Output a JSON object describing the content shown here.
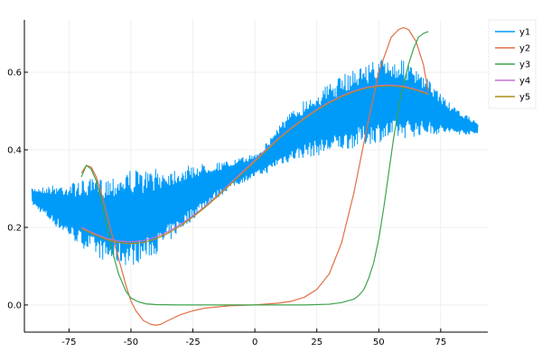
{
  "chart_data": {
    "type": "line",
    "title": "",
    "xlabel": "",
    "ylabel": "",
    "xlim": [
      -93,
      94
    ],
    "ylim": [
      -0.07,
      0.735
    ],
    "xticks": [
      -75,
      -50,
      -25,
      0,
      25,
      50,
      75
    ],
    "xtick_labels": [
      "-75",
      "-50",
      "-25",
      "0",
      "25",
      "50",
      "75"
    ],
    "yticks": [
      0.0,
      0.2,
      0.4,
      0.6
    ],
    "ytick_labels": [
      "0.0",
      "0.2",
      "0.4",
      "0.6"
    ],
    "grid": true,
    "legend_position": "top-right",
    "series": [
      {
        "name": "y1",
        "color": "#009af9",
        "style": "noisy-band",
        "x": [
          -90,
          -80,
          -70,
          -60,
          -50,
          -45,
          -40,
          -30,
          -20,
          -10,
          0,
          5,
          10,
          20,
          30,
          40,
          50,
          60,
          70,
          80,
          90
        ],
        "y_low": [
          0.26,
          0.2,
          0.15,
          0.11,
          0.1,
          0.115,
          0.13,
          0.19,
          0.25,
          0.3,
          0.33,
          0.34,
          0.36,
          0.38,
          0.39,
          0.405,
          0.42,
          0.43,
          0.44,
          0.44,
          0.44
        ],
        "y_high": [
          0.3,
          0.31,
          0.32,
          0.33,
          0.35,
          0.345,
          0.35,
          0.355,
          0.365,
          0.37,
          0.39,
          0.42,
          0.47,
          0.53,
          0.57,
          0.61,
          0.635,
          0.63,
          0.58,
          0.51,
          0.47
        ]
      },
      {
        "name": "y2",
        "color": "#e26f46",
        "x": [
          -70,
          -68,
          -66,
          -64,
          -62,
          -60,
          -58,
          -55,
          -52,
          -50,
          -48,
          -45,
          -42,
          -40,
          -38,
          -35,
          -30,
          -25,
          -20,
          -10,
          0,
          10,
          15,
          20,
          25,
          30,
          35,
          40,
          45,
          50,
          55,
          58,
          60,
          62,
          65,
          68,
          70
        ],
        "y": [
          0.34,
          0.36,
          0.355,
          0.33,
          0.29,
          0.24,
          0.19,
          0.12,
          0.05,
          0.01,
          -0.015,
          -0.04,
          -0.05,
          -0.052,
          -0.05,
          -0.04,
          -0.025,
          -0.015,
          -0.008,
          -0.002,
          0.0,
          0.005,
          0.01,
          0.02,
          0.04,
          0.08,
          0.16,
          0.29,
          0.45,
          0.6,
          0.69,
          0.71,
          0.715,
          0.71,
          0.68,
          0.62,
          0.55
        ]
      },
      {
        "name": "y3",
        "color": "#3da44d",
        "x": [
          -70,
          -68,
          -66,
          -64,
          -62,
          -60,
          -58,
          -55,
          -52,
          -50,
          -47,
          -44,
          -40,
          -30,
          -20,
          -10,
          0,
          10,
          20,
          30,
          35,
          40,
          42,
          44,
          46,
          48,
          50,
          52,
          54,
          56,
          58,
          60,
          62,
          64,
          66,
          68,
          70
        ],
        "y": [
          0.33,
          0.36,
          0.35,
          0.32,
          0.27,
          0.21,
          0.15,
          0.08,
          0.035,
          0.018,
          0.008,
          0.003,
          0.001,
          0.0,
          0.0,
          0.0,
          0.0,
          0.0,
          0.0,
          0.002,
          0.006,
          0.015,
          0.025,
          0.04,
          0.07,
          0.11,
          0.17,
          0.25,
          0.34,
          0.43,
          0.51,
          0.57,
          0.62,
          0.66,
          0.69,
          0.7,
          0.705
        ]
      },
      {
        "name": "y4",
        "color": "#c271d2",
        "x": [
          -70,
          -65,
          -60,
          -55,
          -50,
          -45,
          -40,
          -35,
          -30,
          -25,
          -20,
          -15,
          -10,
          -5,
          0,
          5,
          10,
          15,
          20,
          25,
          30,
          35,
          40,
          45,
          50,
          55,
          60,
          65,
          70
        ],
        "y": [
          0.2,
          0.185,
          0.172,
          0.165,
          0.163,
          0.166,
          0.175,
          0.189,
          0.208,
          0.23,
          0.255,
          0.283,
          0.313,
          0.343,
          0.373,
          0.403,
          0.432,
          0.458,
          0.482,
          0.504,
          0.523,
          0.539,
          0.552,
          0.561,
          0.566,
          0.567,
          0.564,
          0.556,
          0.545
        ]
      },
      {
        "name": "y5",
        "color": "#ac8d18",
        "x": [
          -70,
          -65,
          -60,
          -55,
          -50,
          -45,
          -40,
          -35,
          -30,
          -25,
          -20,
          -15,
          -10,
          -5,
          0,
          5,
          10,
          15,
          20,
          25,
          30,
          35,
          40,
          45,
          50,
          55,
          60,
          65,
          70
        ],
        "y": [
          0.197,
          0.182,
          0.169,
          0.161,
          0.158,
          0.161,
          0.17,
          0.185,
          0.204,
          0.227,
          0.252,
          0.28,
          0.31,
          0.34,
          0.37,
          0.4,
          0.43,
          0.456,
          0.48,
          0.502,
          0.521,
          0.537,
          0.55,
          0.559,
          0.564,
          0.565,
          0.562,
          0.554,
          0.543
        ]
      }
    ]
  }
}
